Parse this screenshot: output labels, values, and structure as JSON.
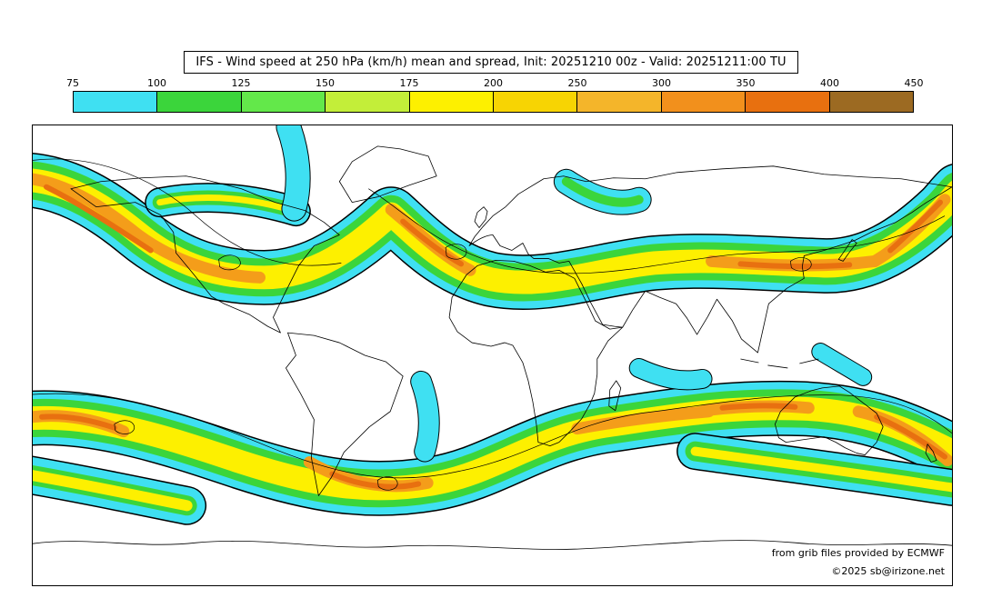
{
  "title": "IFS - Wind speed at 250 hPa (km/h) mean and spread, Init: 20251210 00z - Valid: 20251211:00 TU",
  "colorbar": {
    "ticks": [
      "75",
      "100",
      "125",
      "150",
      "175",
      "200",
      "250",
      "300",
      "350",
      "400",
      "450"
    ],
    "colors": [
      "#3fe0f2",
      "#3bd53b",
      "#63e84a",
      "#c3ee39",
      "#fdf000",
      "#f7d403",
      "#f4b52a",
      "#f2901c",
      "#e8700f",
      "#9c6a22"
    ]
  },
  "map": {
    "band_colors": [
      "#3fe0f2",
      "#3bd53b",
      "#fdf000",
      "#f49d1a",
      "#e87010"
    ],
    "coastline_color": "#000000"
  },
  "attribution": {
    "line1": "from grib files provided by ECMWF",
    "line2": "©2025 sb@irizone.net"
  },
  "chart_data": {
    "type": "heatmap",
    "title": "IFS - Wind speed at 250 hPa (km/h) mean and spread, Init: 20251210 00z - Valid: 20251211:00 TU",
    "variable": "Wind speed at 250 hPa mean and spread",
    "units": "km/h",
    "model": "IFS",
    "init": "20251210 00z",
    "valid": "20251211:00 TU",
    "levels": [
      75,
      100,
      125,
      150,
      175,
      200,
      250,
      300,
      350,
      400,
      450
    ],
    "palette": [
      "#3fe0f2",
      "#3bd53b",
      "#63e84a",
      "#c3ee39",
      "#fdf000",
      "#f7d403",
      "#f4b52a",
      "#f2901c",
      "#e8700f",
      "#9c6a22"
    ],
    "projection": "equirectangular world map with coastlines",
    "depicts": "jet stream wind-speed bands (cyan lowest to orange/brown highest) along northern and southern mid-latitudes with black spread contour lines"
  }
}
